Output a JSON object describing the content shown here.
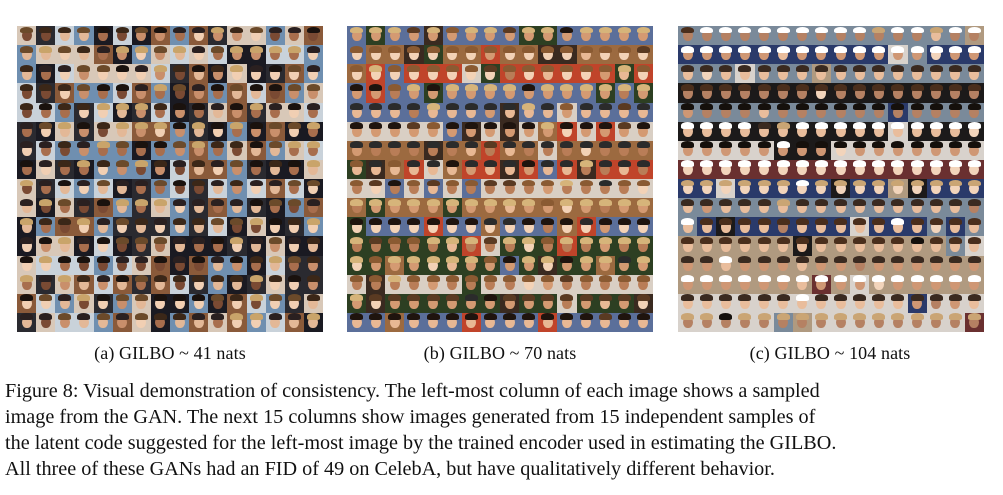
{
  "figure": {
    "panels": [
      {
        "id": "a",
        "label": "(a)",
        "metric": "GILBO",
        "relation": "~",
        "value": "41",
        "unit": "nats",
        "palette": {
          "bg": [
            "#6f8fb0",
            "#2a2a30",
            "#c9d2da",
            "#1a1a22",
            "#8a5a3a",
            "#d8c8b8"
          ],
          "skin": [
            "#e3b897",
            "#c98f6b",
            "#f1cfb3",
            "#a86e4d",
            "#7a4a33"
          ],
          "hair": [
            "#1a120e",
            "#3b2718",
            "#6b4a2a",
            "#c9a46a",
            "#2a2020"
          ]
        }
      },
      {
        "id": "b",
        "label": "(b)",
        "metric": "GILBO",
        "relation": "~",
        "value": "70",
        "unit": "nats",
        "palette": {
          "bg": [
            "#3a2a20",
            "#9c6a40",
            "#d9cfc4",
            "#2d3f22",
            "#c0442a",
            "#5b6f9a"
          ],
          "skin": [
            "#e8b894",
            "#d49a72",
            "#f3d2b6",
            "#b97d57"
          ],
          "hair": [
            "#1f140e",
            "#5a3a22",
            "#d6b47a",
            "#2b2b2b",
            "#8a5a32"
          ]
        }
      },
      {
        "id": "c",
        "label": "(c)",
        "metric": "GILBO",
        "relation": "~",
        "value": "104",
        "unit": "nats",
        "palette": {
          "bg": [
            "#6a3030",
            "#b09a80",
            "#2a3a6a",
            "#d8d2cc",
            "#1c1a1a",
            "#7a8a9a"
          ],
          "skin": [
            "#e9bd9c",
            "#cf9774",
            "#f2d4bb",
            "#b58163"
          ],
          "hair": [
            "#15100c",
            "#4a2e1c",
            "#caa574",
            "#ffffff",
            "#3a2a20"
          ]
        }
      }
    ],
    "caption_lines": [
      [
        {
          "t": "Figure 8: Visual demonstration of consistency. The left-most column of each image shows a sampled"
        }
      ],
      [
        {
          "t": "image from the "
        },
        {
          "t": "GAN",
          "sc": true
        },
        {
          "t": ". The next 15 columns show images generated from 15 independent samples of"
        }
      ],
      [
        {
          "t": "the latent code suggested for the left-most image by the trained encoder used in estimating the "
        },
        {
          "t": "GILBO",
          "sc": true
        },
        {
          "t": "."
        }
      ],
      [
        {
          "t": "All three of these "
        },
        {
          "t": "GAN",
          "sc": true
        },
        {
          "t": "s had an "
        },
        {
          "t": "FID",
          "sc": true
        },
        {
          "t": " of 49 on CelebA, but have qualitatively different behavior."
        }
      ]
    ]
  }
}
